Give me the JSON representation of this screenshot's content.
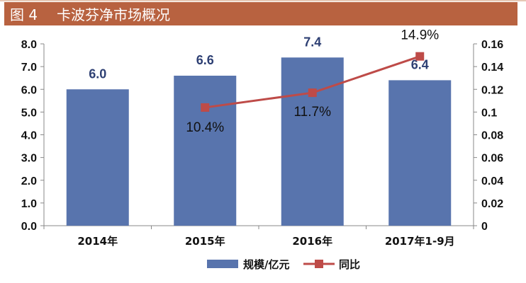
{
  "figure": {
    "number": "图 4",
    "title": "卡波芬净市场概况"
  },
  "chart_data": {
    "type": "bar",
    "categories": [
      "2014年",
      "2015年",
      "2016年",
      "2017年1-9月"
    ],
    "series": [
      {
        "name": "规模/亿元",
        "type": "bar",
        "axis": "left",
        "values": [
          6.0,
          6.6,
          7.4,
          6.4
        ],
        "labels": [
          "6.0",
          "6.6",
          "7.4",
          "6.4"
        ],
        "color": "#5874ad"
      },
      {
        "name": "同比",
        "type": "line",
        "axis": "right",
        "values": [
          null,
          0.104,
          0.117,
          0.149
        ],
        "labels": [
          "",
          "10.4%",
          "11.7%",
          "14.9%"
        ],
        "color": "#be4b48"
      }
    ],
    "y_left": {
      "ylim": [
        0,
        8
      ],
      "ticks": [
        "0.0",
        "1.0",
        "2.0",
        "3.0",
        "4.0",
        "5.0",
        "6.0",
        "7.0",
        "8.0"
      ]
    },
    "y_right": {
      "ylim": [
        0,
        0.16
      ],
      "ticks": [
        "0",
        "0.02",
        "0.04",
        "0.06",
        "0.08",
        "0.1",
        "0.12",
        "0.14",
        "0.16"
      ]
    },
    "grid": false,
    "legend_position": "bottom-center",
    "bar_label_color": "#2d3f73"
  }
}
